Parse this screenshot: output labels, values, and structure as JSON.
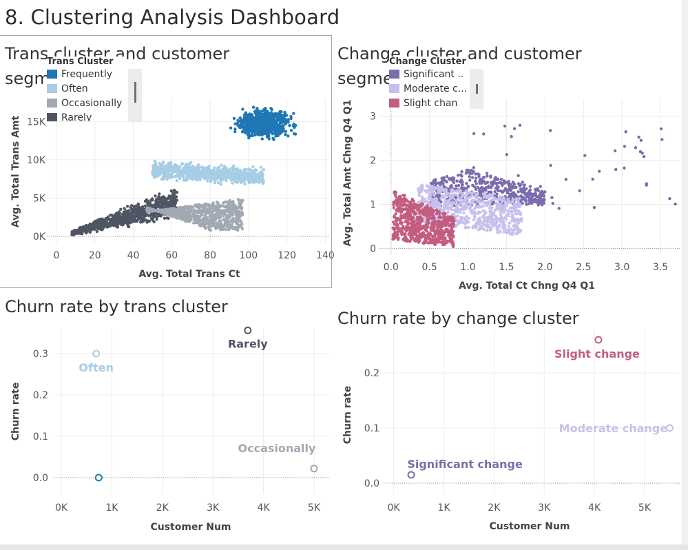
{
  "dashboard": {
    "title": "8. Clustering Analysis Dashboard"
  },
  "colors": {
    "frequently": "#1f77b4",
    "often": "#a6cce6",
    "occasionally": "#a3a9b3",
    "rarely": "#4f5563",
    "significant": "#7b6cae",
    "moderate": "#c8c0ec",
    "slight": "#c45c80",
    "grid": "#ececec",
    "axis_text": "#555555"
  },
  "panels": {
    "trans_scatter": {
      "title": "Trans cluster and customer segmentation",
      "legend": {
        "title": "Trans Cluster",
        "items": [
          {
            "label": "Frequently",
            "color": "#1f77b4"
          },
          {
            "label": "Often",
            "color": "#a6cce6"
          },
          {
            "label": "Occasionally",
            "color": "#a3a9b3"
          },
          {
            "label": "Rarely",
            "color": "#4f5563"
          }
        ]
      }
    },
    "change_scatter": {
      "title": "Change cluster and customer segmentation",
      "legend": {
        "title": "Change Cluster",
        "items": [
          {
            "label": "Significant ..",
            "color": "#7b6cae"
          },
          {
            "label": "Moderate c...",
            "color": "#c8c0ec"
          },
          {
            "label": "Slight chan",
            "color": "#c45c80"
          }
        ]
      }
    },
    "churn_trans": {
      "title": "Churn rate by trans cluster"
    },
    "churn_change": {
      "title": "Churn rate by change cluster"
    }
  },
  "chart_data": [
    {
      "id": "trans_scatter",
      "type": "scatter",
      "xlabel": "Avg. Total Trans Ct",
      "ylabel": "Avg. Total Trans Amt",
      "xlim": [
        -5,
        142
      ],
      "ylim": [
        -900,
        18000
      ],
      "xticks": [
        0,
        20,
        40,
        60,
        80,
        100,
        120,
        140
      ],
      "xtick_labels": [
        "0",
        "20",
        "40",
        "60",
        "80",
        "100",
        "120",
        "140"
      ],
      "yticks": [
        0,
        5000,
        10000,
        15000
      ],
      "ytick_labels": [
        "0K",
        "5K",
        "10K",
        "15K"
      ],
      "grid": true,
      "series": [
        {
          "name": "Frequently",
          "clusters": [
            {
              "x_range": [
                78,
                140
              ],
              "y_range": [
                11500,
                17600
              ]
            }
          ]
        },
        {
          "name": "Often",
          "clusters": [
            {
              "x_range": [
                50,
                110
              ],
              "y_range": [
                6000,
                10500
              ]
            }
          ]
        },
        {
          "name": "Occasionally",
          "clusters": [
            {
              "x_range": [
                45,
                98
              ],
              "y_range": [
                1000,
                5200
              ]
            }
          ]
        },
        {
          "name": "Rarely",
          "clusters": [
            {
              "x_range": [
                8,
                65
              ],
              "y_range": [
                500,
                6500
              ]
            }
          ]
        }
      ]
    },
    {
      "id": "change_scatter",
      "type": "scatter",
      "xlabel": "Avg. Total Ct Chng Q4 Q1",
      "ylabel": "Avg. Total Amt Chng Q4 Q1",
      "xlim": [
        -0.15,
        3.75
      ],
      "ylim": [
        -0.15,
        3.4
      ],
      "xticks": [
        0,
        0.5,
        1,
        1.5,
        2,
        2.5,
        3,
        3.5
      ],
      "xtick_labels": [
        "0.0",
        "0.5",
        "1.0",
        "1.5",
        "2.0",
        "2.5",
        "3.0",
        "3.5"
      ],
      "yticks": [
        0,
        1,
        2,
        3
      ],
      "ytick_labels": [
        "0",
        "1",
        "2",
        "3"
      ],
      "grid": true,
      "series": [
        {
          "name": "Significant change",
          "clusters": [
            {
              "x_range": [
                0.5,
                3.7
              ],
              "y_range": [
                0.9,
                3.4
              ]
            }
          ]
        },
        {
          "name": "Moderate change",
          "clusters": [
            {
              "x_range": [
                0.3,
                1.9
              ],
              "y_range": [
                0.4,
                1.5
              ]
            }
          ]
        },
        {
          "name": "Slight change",
          "clusters": [
            {
              "x_range": [
                0.0,
                0.9
              ],
              "y_range": [
                0.0,
                1.25
              ]
            }
          ]
        }
      ]
    },
    {
      "id": "churn_trans",
      "type": "scatter",
      "xlabel": "Customer Num",
      "ylabel": "Churn rate",
      "xlim": [
        -150,
        5300
      ],
      "ylim": [
        -0.04,
        0.36
      ],
      "xticks": [
        0,
        1000,
        2000,
        3000,
        4000,
        5000
      ],
      "xtick_labels": [
        "0K",
        "1K",
        "2K",
        "3K",
        "4K",
        "5K"
      ],
      "yticks": [
        0,
        0.1,
        0.2,
        0.3
      ],
      "ytick_labels": [
        "0.0",
        "0.1",
        "0.2",
        "0.3"
      ],
      "grid": true,
      "points": [
        {
          "name": "Frequently",
          "x": 740,
          "y": 0.0,
          "label": ""
        },
        {
          "name": "Often",
          "x": 690,
          "y": 0.3,
          "label": "Often"
        },
        {
          "name": "Occasionally",
          "x": 5000,
          "y": 0.022,
          "label": "Occasionally"
        },
        {
          "name": "Rarely",
          "x": 3690,
          "y": 0.356,
          "label": "Rarely"
        }
      ]
    },
    {
      "id": "churn_change",
      "type": "scatter",
      "xlabel": "Customer Num",
      "ylabel": "Churn rate",
      "xlim": [
        -200,
        5700
      ],
      "ylim": [
        -0.02,
        0.28
      ],
      "xticks": [
        0,
        1000,
        2000,
        3000,
        4000,
        5000
      ],
      "xtick_labels": [
        "0K",
        "1K",
        "2K",
        "3K",
        "4K",
        "5K"
      ],
      "yticks": [
        0,
        0.1,
        0.2
      ],
      "ytick_labels": [
        "0.0",
        "0.1",
        "0.2"
      ],
      "grid": true,
      "points": [
        {
          "name": "Significant change",
          "x": 350,
          "y": 0.015,
          "label": "Significant change"
        },
        {
          "name": "Moderate change",
          "x": 5500,
          "y": 0.1,
          "label": "Moderate change"
        },
        {
          "name": "Slight change",
          "x": 4080,
          "y": 0.26,
          "label": "Slight change"
        }
      ]
    }
  ]
}
